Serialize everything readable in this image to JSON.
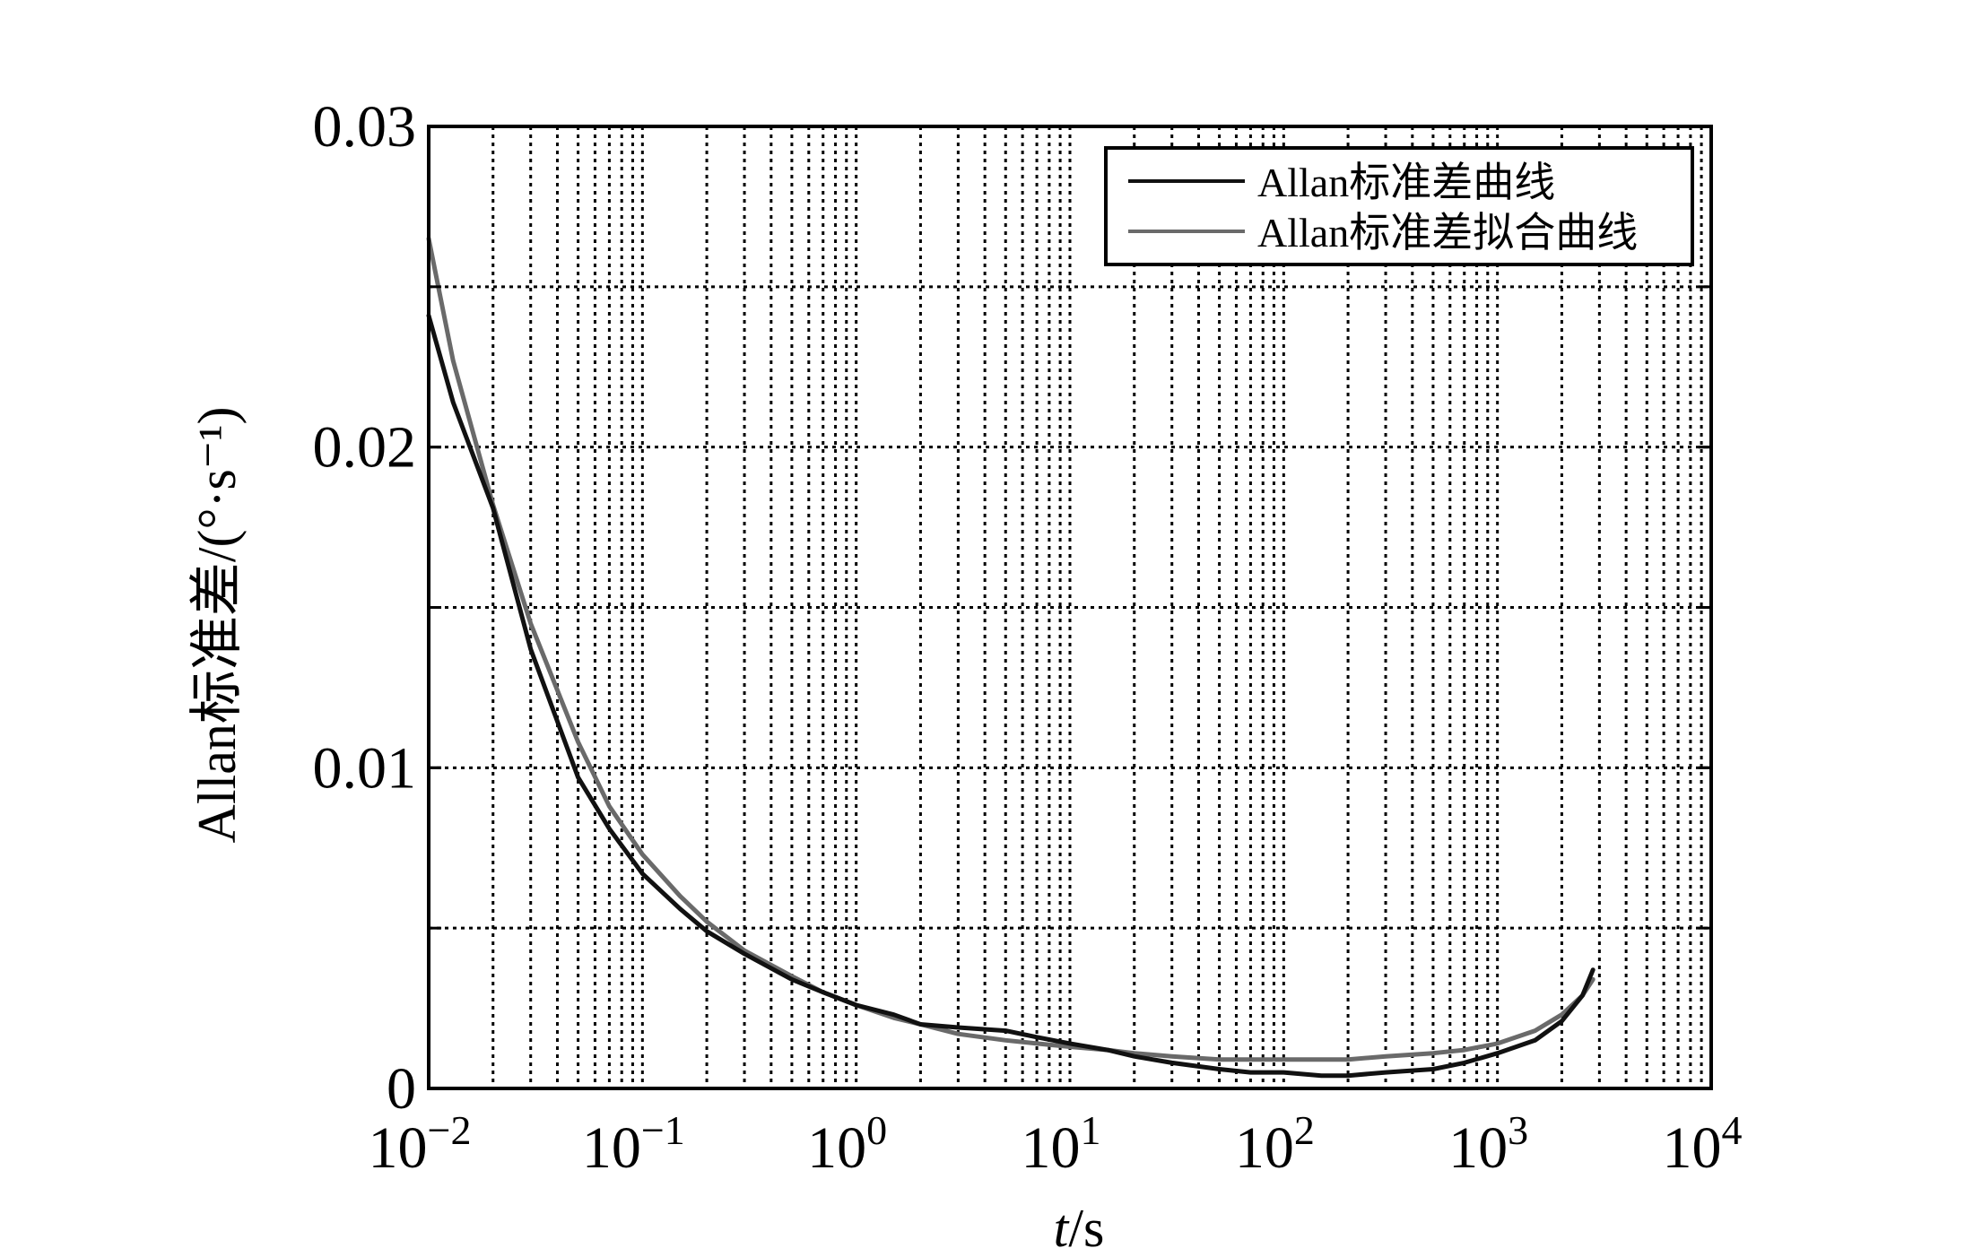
{
  "chart_data": {
    "type": "line",
    "title": "",
    "xlabel_italic": "t",
    "xlabel_rest": "/s",
    "ylabel": "Allan标准差/(°·s⁻¹)",
    "xscale": "log",
    "xlim": [
      0.01,
      10000
    ],
    "ylim": [
      0,
      0.03
    ],
    "xticks": [
      {
        "value": 0.01,
        "base": "10",
        "exp": "−2"
      },
      {
        "value": 0.1,
        "base": "10",
        "exp": "−1"
      },
      {
        "value": 1,
        "base": "10",
        "exp": "0"
      },
      {
        "value": 10,
        "base": "10",
        "exp": "1"
      },
      {
        "value": 100,
        "base": "10",
        "exp": "2"
      },
      {
        "value": 1000,
        "base": "10",
        "exp": "3"
      },
      {
        "value": 10000,
        "base": "10",
        "exp": "4"
      }
    ],
    "yticks": [
      {
        "value": 0,
        "label": "0"
      },
      {
        "value": 0.01,
        "label": "0.01"
      },
      {
        "value": 0.02,
        "label": "0.02"
      },
      {
        "value": 0.03,
        "label": "0.03"
      }
    ],
    "ygrid": [
      0.005,
      0.01,
      0.015,
      0.02,
      0.025
    ],
    "grid": true,
    "legend": {
      "placement": "top-right"
    },
    "series": [
      {
        "name": "Allan标准差曲线",
        "color": "#111111",
        "x": [
          0.01,
          0.013,
          0.02,
          0.03,
          0.05,
          0.07,
          0.1,
          0.15,
          0.2,
          0.3,
          0.5,
          0.7,
          1,
          1.5,
          2,
          3,
          5,
          7,
          10,
          15,
          20,
          30,
          50,
          70,
          100,
          150,
          200,
          300,
          500,
          700,
          1000,
          1500,
          2000,
          2500,
          2800
        ],
        "y": [
          0.0241,
          0.0214,
          0.0181,
          0.0137,
          0.0097,
          0.0081,
          0.0067,
          0.0056,
          0.0049,
          0.0042,
          0.0034,
          0.003,
          0.0026,
          0.0023,
          0.002,
          0.0019,
          0.0018,
          0.0016,
          0.0014,
          0.0012,
          0.001,
          0.0008,
          0.0006,
          0.0005,
          0.0005,
          0.0004,
          0.0004,
          0.0005,
          0.0006,
          0.0008,
          0.0011,
          0.0015,
          0.0021,
          0.0029,
          0.0037
        ]
      },
      {
        "name": "Allan标准差拟合曲线",
        "color": "#6a6a6a",
        "x": [
          0.01,
          0.013,
          0.02,
          0.03,
          0.05,
          0.07,
          0.1,
          0.15,
          0.2,
          0.3,
          0.5,
          0.7,
          1,
          1.5,
          2,
          3,
          5,
          7,
          10,
          15,
          20,
          30,
          50,
          70,
          100,
          150,
          200,
          300,
          500,
          700,
          1000,
          1500,
          2000,
          2500,
          2800
        ],
        "y": [
          0.0265,
          0.0227,
          0.0182,
          0.0145,
          0.0108,
          0.0088,
          0.0073,
          0.006,
          0.0052,
          0.0043,
          0.0035,
          0.003,
          0.0026,
          0.0022,
          0.002,
          0.0017,
          0.0015,
          0.0014,
          0.0013,
          0.0012,
          0.0011,
          0.001,
          0.0009,
          0.0009,
          0.0009,
          0.0009,
          0.0009,
          0.001,
          0.0011,
          0.0012,
          0.0014,
          0.0018,
          0.0023,
          0.0029,
          0.0034
        ]
      }
    ]
  }
}
